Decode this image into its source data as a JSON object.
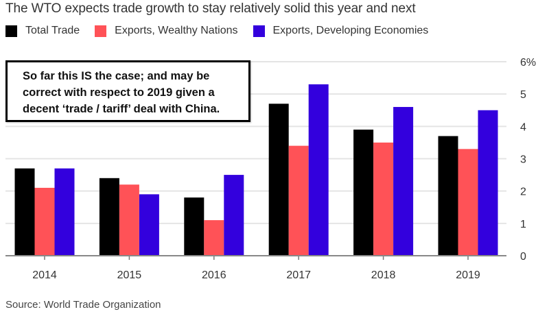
{
  "chart_data": {
    "type": "bar",
    "title": "The WTO expects trade growth to stay relatively solid this year and next",
    "categories": [
      "2014",
      "2015",
      "2016",
      "2017",
      "2018",
      "2019"
    ],
    "series": [
      {
        "name": "Total Trade",
        "color": "#000000",
        "values": [
          2.7,
          2.4,
          1.8,
          4.7,
          3.9,
          3.7
        ]
      },
      {
        "name": "Exports, Wealthy Nations",
        "color": "#ff5257",
        "values": [
          2.1,
          2.2,
          1.1,
          3.4,
          3.5,
          3.3
        ]
      },
      {
        "name": "Exports, Developing Economies",
        "color": "#3300dd",
        "values": [
          2.7,
          1.9,
          2.5,
          5.3,
          4.6,
          4.5
        ]
      }
    ],
    "xlabel": "",
    "ylabel": "",
    "ylim": [
      0,
      6
    ],
    "yticks": [
      "0",
      "1",
      "2",
      "3",
      "4",
      "5",
      "6%"
    ],
    "grid": true,
    "legend_position": "top-left",
    "axis_position": "right",
    "annotation": {
      "lines": [
        "So far this IS the case; and may be",
        "correct with respect to 2019 given a",
        "decent ‘trade / tariff’ deal with China."
      ]
    },
    "source": "Source: World Trade Organization"
  }
}
